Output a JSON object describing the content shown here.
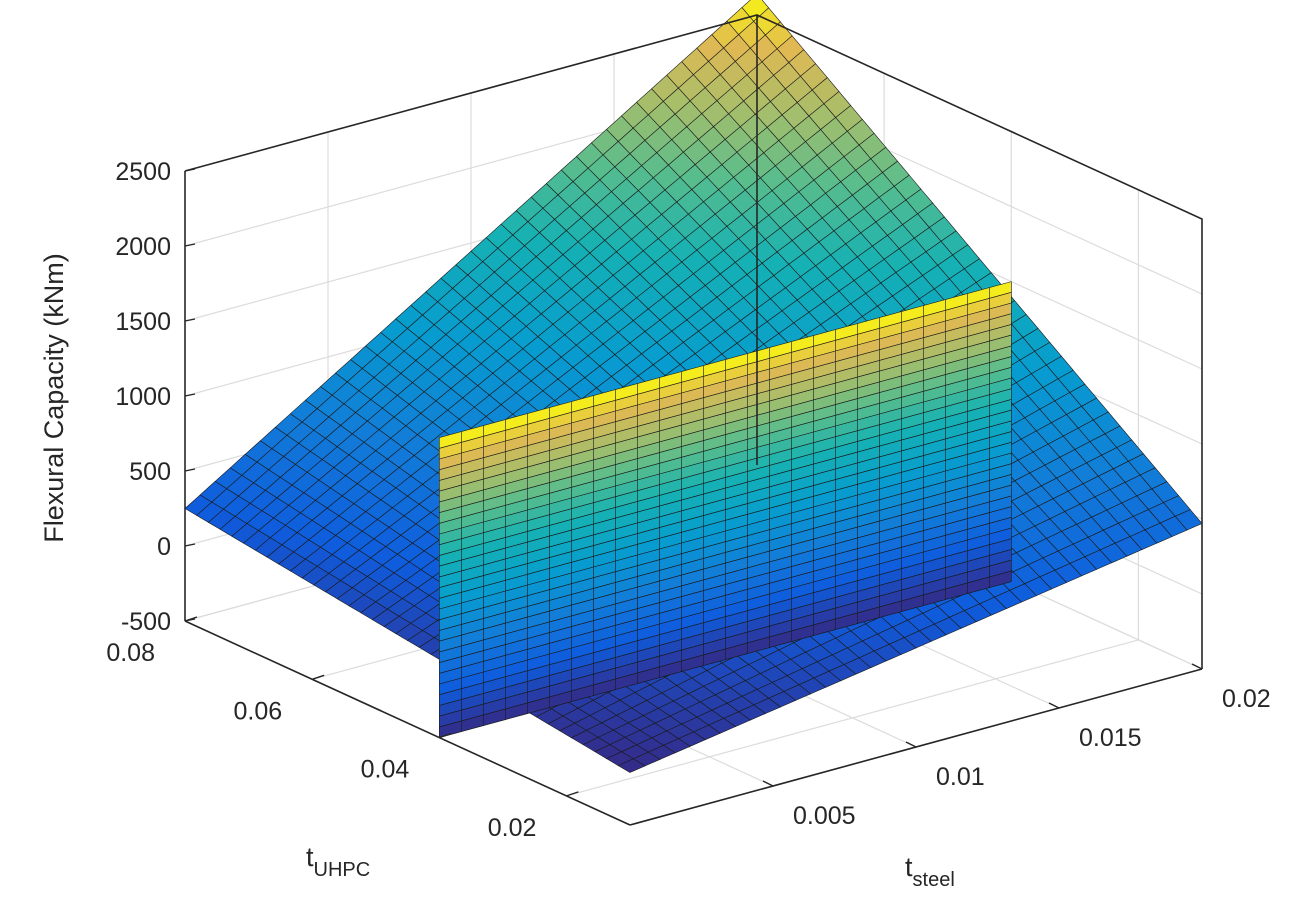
{
  "chart_data": {
    "type": "surface3d",
    "colormap": "parula",
    "grid": true,
    "xlabel": {
      "main": "t",
      "sub": "steel"
    },
    "ylabel": {
      "main": "t",
      "sub": "UHPC"
    },
    "zlabel": "Flexural Capacity  (kNm)",
    "xlim": [
      0,
      0.02
    ],
    "ylim": [
      0.01,
      0.08
    ],
    "zlim": [
      -500,
      2500
    ],
    "x_ticks": [
      "0.005",
      "0.01",
      "0.015",
      "0.02"
    ],
    "y_ticks": [
      "0.02",
      "0.04",
      "0.06",
      "0.08"
    ],
    "z_ticks": [
      "-500",
      "0",
      "500",
      "1000",
      "1500",
      "2000",
      "2500"
    ],
    "series": [
      {
        "kind": "sloped surface",
        "corners": [
          {
            "x": 0,
            "y": 0.01,
            "z": -150
          },
          {
            "x": 0.02,
            "y": 0.01,
            "z": 470
          },
          {
            "x": 0,
            "y": 0.08,
            "z": 250
          },
          {
            "x": 0.02,
            "y": 0.08,
            "z": 2640
          }
        ]
      },
      {
        "kind": "vertical plane",
        "y": 0.04,
        "x_range": [
          0,
          0.02
        ],
        "z_range": [
          -500,
          1500
        ]
      }
    ]
  }
}
